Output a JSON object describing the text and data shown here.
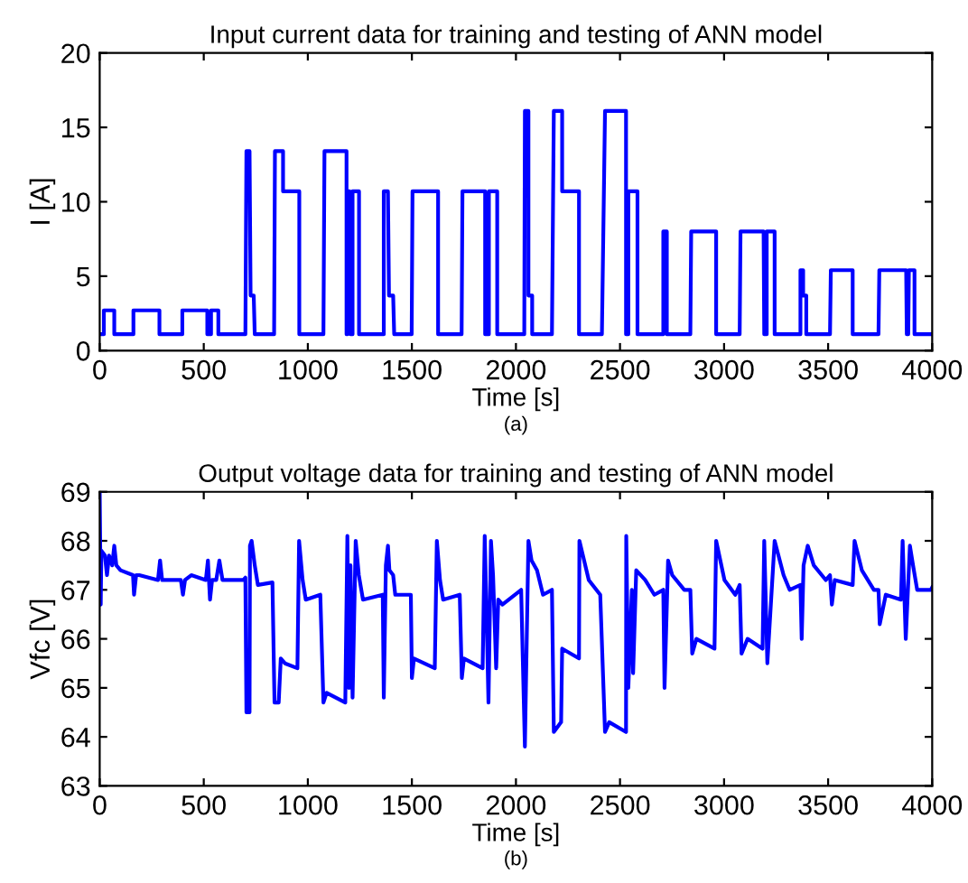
{
  "chart_data": [
    {
      "type": "line",
      "title": "Input current data for training and testing of ANN model",
      "xlabel": "Time [s]",
      "ylabel": "I [A]",
      "annotations": [
        "(a)"
      ],
      "xlim": [
        0,
        4000
      ],
      "ylim": [
        0,
        20
      ],
      "xticks": [
        0,
        500,
        1000,
        1500,
        2000,
        2500,
        3000,
        3500,
        4000
      ],
      "yticks": [
        0,
        5,
        10,
        15,
        20
      ],
      "grid": false,
      "legend": false,
      "marker": "none",
      "line_style": "solid",
      "series": [
        {
          "color": "#0000ff",
          "x": [
            0,
            20,
            20,
            70,
            70,
            162,
            162,
            287,
            287,
            397,
            397,
            517,
            517,
            535,
            535,
            570,
            570,
            700,
            705,
            720,
            725,
            740,
            745,
            838,
            842,
            881,
            881,
            959,
            959,
            1075,
            1080,
            1186,
            1186,
            1190,
            1195,
            1200,
            1205,
            1215,
            1215,
            1246,
            1246,
            1365,
            1365,
            1385,
            1390,
            1410,
            1415,
            1499,
            1503,
            1626,
            1626,
            1739,
            1743,
            1852,
            1852,
            1870,
            1870,
            1910,
            1910,
            2040,
            2043,
            2060,
            2060,
            2078,
            2078,
            2173,
            2182,
            2222,
            2222,
            2303,
            2303,
            2413,
            2428,
            2529,
            2529,
            2540,
            2540,
            2584,
            2584,
            2708,
            2708,
            2725,
            2725,
            2838,
            2842,
            2962,
            2962,
            3075,
            3079,
            3190,
            3193,
            3205,
            3205,
            3243,
            3243,
            3367,
            3367,
            3380,
            3380,
            3395,
            3395,
            3509,
            3513,
            3618,
            3618,
            3742,
            3746,
            3875,
            3878,
            3885,
            3888,
            3915,
            3915,
            4000
          ],
          "values": [
            1.1,
            1.1,
            2.7,
            2.7,
            1.1,
            1.1,
            2.7,
            2.7,
            1.1,
            1.1,
            2.7,
            2.7,
            1.1,
            1.1,
            2.7,
            2.7,
            1.1,
            1.1,
            13.4,
            13.4,
            3.7,
            3.7,
            1.1,
            1.1,
            13.4,
            13.4,
            10.7,
            10.7,
            1.1,
            1.1,
            13.4,
            13.4,
            1.1,
            1.1,
            10.7,
            10.7,
            1.1,
            1.1,
            10.7,
            10.7,
            1.1,
            1.1,
            10.7,
            10.7,
            3.7,
            3.7,
            1.1,
            1.1,
            10.7,
            10.7,
            1.1,
            1.1,
            10.7,
            10.7,
            1.1,
            1.1,
            10.7,
            10.7,
            1.1,
            1.1,
            16.1,
            16.1,
            3.7,
            3.7,
            1.1,
            1.1,
            16.1,
            16.1,
            10.7,
            10.7,
            1.1,
            1.1,
            16.1,
            16.1,
            1.1,
            1.1,
            10.7,
            10.7,
            1.1,
            1.1,
            8.0,
            8.0,
            1.1,
            1.1,
            8.0,
            8.0,
            1.1,
            1.1,
            8.0,
            8.0,
            1.1,
            1.1,
            8.0,
            8.0,
            1.1,
            1.1,
            5.4,
            5.4,
            3.7,
            3.7,
            1.1,
            1.1,
            5.4,
            5.4,
            1.1,
            1.1,
            5.4,
            5.4,
            1.1,
            1.1,
            5.4,
            5.4,
            1.1,
            1.1
          ]
        }
      ]
    },
    {
      "type": "line",
      "title": "Output voltage data for training and testing of ANN model",
      "xlabel": "Time [s]",
      "ylabel": "Vfc [V]",
      "annotations": [
        "(b)"
      ],
      "xlim": [
        0,
        4000
      ],
      "ylim": [
        63,
        69
      ],
      "xticks": [
        0,
        500,
        1000,
        1500,
        2000,
        2500,
        3000,
        3500,
        4000
      ],
      "yticks": [
        63,
        64,
        65,
        66,
        67,
        68,
        69
      ],
      "grid": false,
      "legend": false,
      "marker": "none",
      "line_style": "solid",
      "series": [
        {
          "color": "#0000ff",
          "x": [
            0,
            5,
            8,
            25,
            35,
            45,
            60,
            70,
            80,
            100,
            160,
            165,
            175,
            190,
            280,
            290,
            300,
            390,
            400,
            410,
            440,
            510,
            520,
            530,
            540,
            560,
            575,
            590,
            690,
            700,
            705,
            720,
            722,
            730,
            745,
            760,
            830,
            840,
            860,
            870,
            890,
            950,
            958,
            975,
            990,
            1060,
            1075,
            1090,
            1180,
            1190,
            1198,
            1205,
            1215,
            1230,
            1245,
            1265,
            1360,
            1365,
            1375,
            1385,
            1392,
            1410,
            1420,
            1495,
            1500,
            1510,
            1610,
            1620,
            1635,
            1650,
            1730,
            1740,
            1750,
            1840,
            1850,
            1860,
            1868,
            1880,
            1890,
            1905,
            1915,
            1935,
            2025,
            2043,
            2060,
            2075,
            2101,
            2130,
            2173,
            2182,
            2217,
            2222,
            2303,
            2305,
            2350,
            2405,
            2428,
            2448,
            2529,
            2530,
            2540,
            2557,
            2563,
            2578,
            2621,
            2665,
            2708,
            2714,
            2731,
            2751,
            2809,
            2838,
            2847,
            2867,
            2954,
            2962,
            3002,
            3054,
            3075,
            3084,
            3113,
            3185,
            3193,
            3208,
            3243,
            3286,
            3315,
            3367,
            3373,
            3382,
            3402,
            3431,
            3489,
            3509,
            3518,
            3532,
            3618,
            3627,
            3662,
            3720,
            3742,
            3748,
            3777,
            3850,
            3858,
            3873,
            3893,
            3908,
            3928,
            3994,
            4000
          ],
          "values": [
            69,
            66.7,
            67.8,
            67.7,
            67.3,
            67.7,
            67.5,
            67.9,
            67.5,
            67.4,
            67.3,
            66.9,
            67.3,
            67.3,
            67.2,
            67.6,
            67.2,
            67.2,
            66.9,
            67.2,
            67.3,
            67.2,
            67.6,
            66.8,
            67.2,
            67.2,
            67.6,
            67.2,
            67.2,
            67.25,
            64.5,
            64.5,
            67.9,
            68.0,
            67.5,
            67.1,
            67.15,
            64.7,
            64.7,
            65.6,
            65.5,
            65.4,
            68.0,
            67.2,
            66.8,
            66.9,
            64.7,
            64.9,
            64.7,
            68.1,
            65.0,
            67.5,
            64.8,
            68.0,
            67.3,
            66.8,
            66.9,
            64.8,
            67.5,
            67.9,
            67.4,
            67.3,
            66.9,
            66.9,
            65.2,
            65.6,
            65.4,
            68.0,
            67.2,
            66.8,
            66.9,
            65.2,
            65.6,
            65.4,
            68.1,
            66.3,
            64.7,
            68.0,
            67.3,
            65.4,
            66.8,
            66.7,
            67.0,
            63.8,
            68.0,
            67.6,
            67.4,
            66.9,
            67.0,
            64.1,
            64.3,
            65.8,
            65.6,
            68.0,
            67.2,
            66.9,
            64.1,
            64.3,
            64.1,
            68.1,
            65.0,
            67.0,
            65.3,
            67.4,
            67.2,
            66.9,
            67.0,
            65.0,
            67.6,
            67.3,
            67.0,
            67.0,
            65.7,
            66.0,
            65.8,
            68.0,
            67.2,
            66.9,
            67.1,
            65.7,
            66.0,
            65.8,
            68.0,
            65.5,
            68.0,
            67.3,
            67.0,
            67.1,
            66.0,
            67.5,
            67.9,
            67.5,
            67.2,
            67.3,
            66.7,
            67.2,
            67.1,
            68.0,
            67.4,
            67.0,
            67.0,
            66.3,
            66.9,
            66.8,
            68.0,
            66.0,
            67.9,
            67.5,
            67.0,
            67.0,
            67.05
          ]
        }
      ]
    }
  ]
}
